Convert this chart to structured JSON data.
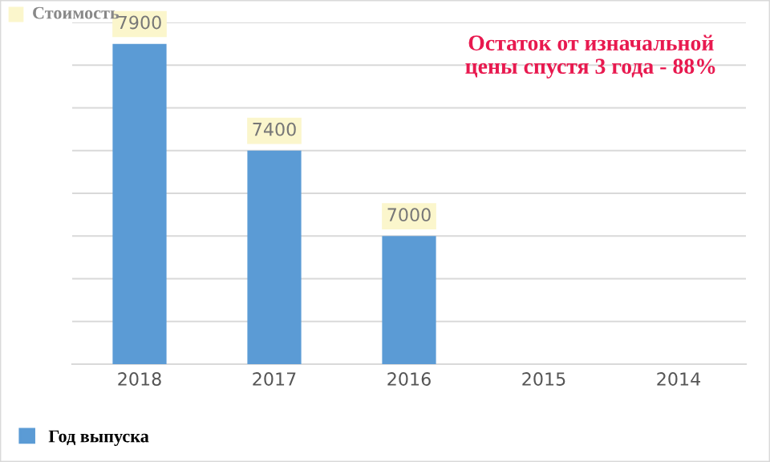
{
  "chart_data": {
    "type": "bar",
    "ylabel": "Стоимость",
    "categories": [
      "2018",
      "2017",
      "2016",
      "2015",
      "2014"
    ],
    "series": [
      {
        "name": "Год выпуска",
        "color": "#5b9bd5",
        "values": [
          7900,
          7400,
          7000,
          null,
          null
        ]
      }
    ],
    "ylim": [
      6400,
      8000
    ],
    "yticks": [
      {
        "value": 6400,
        "label": null
      },
      {
        "value": 6600,
        "label": null
      },
      {
        "value": 6800,
        "label": null
      },
      {
        "value": 7000,
        "label": null
      },
      {
        "value": 7200,
        "label": null
      },
      {
        "value": 7400,
        "label": null
      },
      {
        "value": 7600,
        "label": null
      },
      {
        "value": 7800,
        "label": null
      },
      {
        "value": 8000,
        "label": null
      }
    ],
    "tick_labels": "x",
    "grid": "y",
    "legend": "bottom",
    "data_labels": true,
    "annotations": [
      "Остаток от изначальной\nцены спустя 3 года - 88%"
    ]
  }
}
